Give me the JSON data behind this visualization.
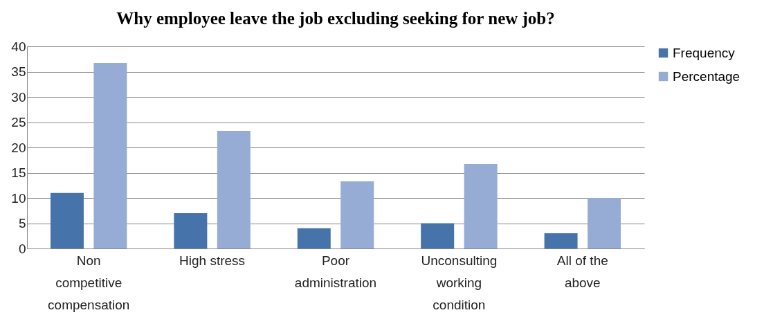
{
  "chart_data": {
    "type": "bar",
    "title": "Why employee leave  the job excluding seeking for new job?",
    "categories": [
      "Non competitive compensation",
      "High stress",
      "Poor administration",
      "Unconsulting working condition",
      "All of the above"
    ],
    "series": [
      {
        "name": "Frequency",
        "color": "#4674aa",
        "values": [
          11,
          7,
          4,
          5,
          3
        ]
      },
      {
        "name": "Percentage",
        "color": "#96acd5",
        "values": [
          36.7,
          23.3,
          13.3,
          16.7,
          10
        ]
      }
    ],
    "ylim": [
      0,
      40
    ],
    "yticks": [
      0,
      5,
      10,
      15,
      20,
      25,
      30,
      35,
      40
    ],
    "grid": "y",
    "legend": "right"
  }
}
